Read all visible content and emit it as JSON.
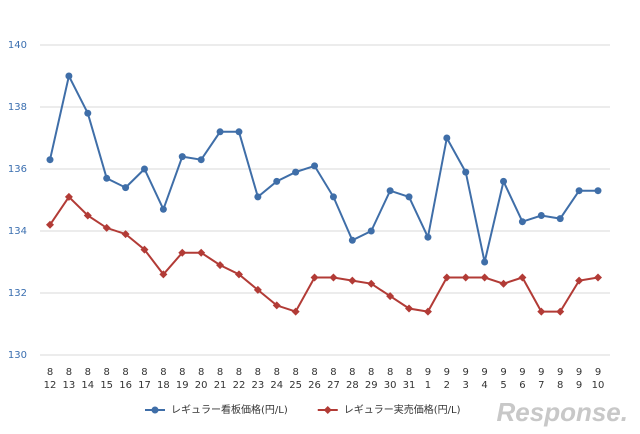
{
  "chart_data": {
    "type": "line",
    "categories": [
      [
        "8",
        "12"
      ],
      [
        "8",
        "13"
      ],
      [
        "8",
        "14"
      ],
      [
        "8",
        "15"
      ],
      [
        "8",
        "16"
      ],
      [
        "8",
        "17"
      ],
      [
        "8",
        "18"
      ],
      [
        "8",
        "19"
      ],
      [
        "8",
        "20"
      ],
      [
        "8",
        "21"
      ],
      [
        "8",
        "22"
      ],
      [
        "8",
        "23"
      ],
      [
        "8",
        "24"
      ],
      [
        "8",
        "25"
      ],
      [
        "8",
        "26"
      ],
      [
        "8",
        "27"
      ],
      [
        "8",
        "28"
      ],
      [
        "8",
        "29"
      ],
      [
        "8",
        "30"
      ],
      [
        "8",
        "31"
      ],
      [
        "9",
        "1"
      ],
      [
        "9",
        "2"
      ],
      [
        "9",
        "3"
      ],
      [
        "9",
        "4"
      ],
      [
        "9",
        "5"
      ],
      [
        "9",
        "6"
      ],
      [
        "9",
        "7"
      ],
      [
        "9",
        "8"
      ],
      [
        "9",
        "9"
      ],
      [
        "9",
        "10"
      ]
    ],
    "series": [
      {
        "name": "レギュラー看板価格(円/L)",
        "color": "#3f6ea8",
        "marker": "circle",
        "values": [
          136.3,
          139.0,
          137.8,
          135.7,
          135.4,
          136.0,
          134.7,
          136.4,
          136.3,
          137.2,
          137.2,
          135.1,
          135.6,
          135.9,
          136.1,
          135.1,
          133.7,
          134.0,
          135.3,
          135.1,
          133.8,
          137.0,
          135.9,
          133.0,
          135.6,
          134.3,
          134.5,
          134.4,
          135.3,
          135.3
        ]
      },
      {
        "name": "レギュラー実売価格(円/L)",
        "color": "#b23b36",
        "marker": "diamond",
        "values": [
          134.2,
          135.1,
          134.5,
          134.1,
          133.9,
          133.4,
          132.6,
          133.3,
          133.3,
          132.9,
          132.6,
          132.1,
          131.6,
          131.4,
          132.5,
          132.5,
          132.4,
          132.3,
          131.9,
          131.5,
          131.4,
          132.5,
          132.5,
          132.5,
          132.3,
          132.5,
          131.4,
          131.4,
          132.4,
          132.5
        ]
      }
    ],
    "ylim": [
      130,
      140
    ],
    "yticks": [
      130,
      132,
      134,
      136,
      138,
      140
    ],
    "grid": true,
    "legend": "bottom",
    "watermark": "Response."
  }
}
